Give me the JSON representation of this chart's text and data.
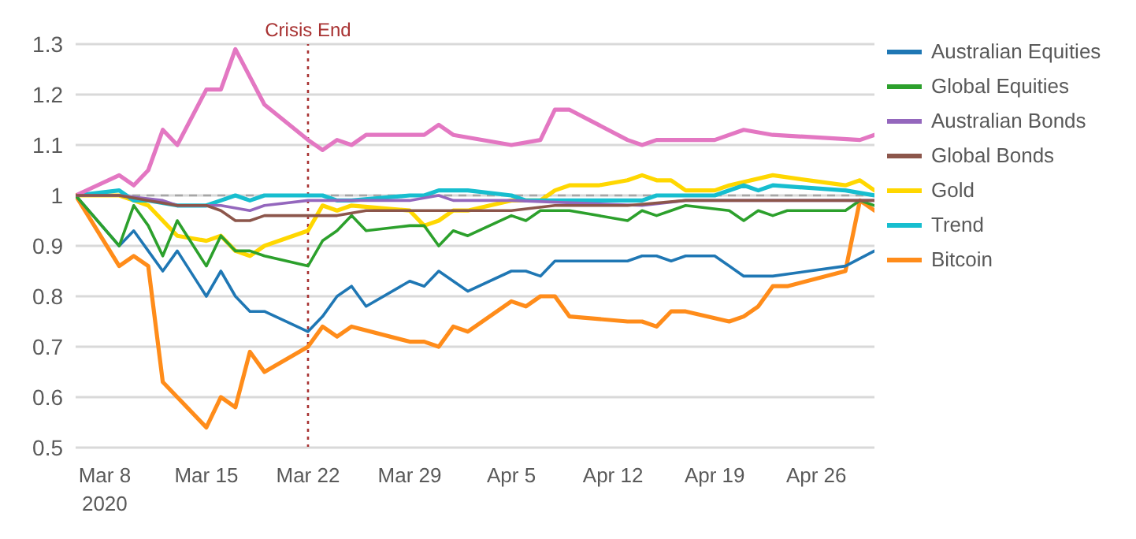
{
  "chart_data": {
    "type": "line",
    "xlim": [
      "2020-03-06",
      "2020-04-30"
    ],
    "xticks": [
      {
        "value": "2020-03-08",
        "label": "Mar 8\n2020"
      },
      {
        "value": "2020-03-15",
        "label": "Mar 15"
      },
      {
        "value": "2020-03-22",
        "label": "Mar 22"
      },
      {
        "value": "2020-03-29",
        "label": "Mar 29"
      },
      {
        "value": "2020-04-05",
        "label": "Apr 5"
      },
      {
        "value": "2020-04-12",
        "label": "Apr 12"
      },
      {
        "value": "2020-04-19",
        "label": "Apr 19"
      },
      {
        "value": "2020-04-26",
        "label": "Apr 26"
      }
    ],
    "ylim": [
      0.5,
      1.3
    ],
    "yticks": [
      0.5,
      0.6,
      0.7,
      0.8,
      0.9,
      1,
      1.1,
      1.2,
      1.3
    ],
    "grid": "y",
    "legend": "right",
    "marker": "none",
    "line_style": "solid",
    "ref_lines": [
      {
        "axis": "x",
        "value": "2020-03-22",
        "label": "Crisis End",
        "color": "#a83232",
        "line_style": "dotted"
      },
      {
        "axis": "y",
        "value": 1,
        "label": null,
        "color": "#a6a6a6",
        "line_style": "dashed"
      }
    ],
    "series": [
      {
        "name": "Australian Equities",
        "color": "#1f77b4",
        "x": [
          "2020-03-06",
          "2020-03-09",
          "2020-03-10",
          "2020-03-11",
          "2020-03-12",
          "2020-03-13",
          "2020-03-15",
          "2020-03-16",
          "2020-03-17",
          "2020-03-18",
          "2020-03-19",
          "2020-03-22",
          "2020-03-23",
          "2020-03-24",
          "2020-03-25",
          "2020-03-26",
          "2020-03-29",
          "2020-03-30",
          "2020-03-31",
          "2020-04-02",
          "2020-04-05",
          "2020-04-06",
          "2020-04-07",
          "2020-04-08",
          "2020-04-11",
          "2020-04-13",
          "2020-04-14",
          "2020-04-15",
          "2020-04-16",
          "2020-04-17",
          "2020-04-19",
          "2020-04-20",
          "2020-04-21",
          "2020-04-23",
          "2020-04-28",
          "2020-04-30"
        ],
        "values": [
          1.0,
          0.9,
          0.93,
          0.89,
          0.85,
          0.89,
          0.8,
          0.85,
          0.8,
          0.77,
          0.77,
          0.73,
          0.76,
          0.8,
          0.82,
          0.78,
          0.83,
          0.82,
          0.85,
          0.81,
          0.85,
          0.85,
          0.84,
          0.87,
          0.87,
          0.87,
          0.88,
          0.88,
          0.87,
          0.88,
          0.88,
          0.86,
          0.84,
          0.84,
          0.86,
          0.89
        ]
      },
      {
        "name": "Global Equities",
        "color": "#2ca02c",
        "x": [
          "2020-03-06",
          "2020-03-09",
          "2020-03-10",
          "2020-03-11",
          "2020-03-12",
          "2020-03-13",
          "2020-03-15",
          "2020-03-16",
          "2020-03-17",
          "2020-03-18",
          "2020-03-19",
          "2020-03-22",
          "2020-03-23",
          "2020-03-24",
          "2020-03-25",
          "2020-03-26",
          "2020-03-29",
          "2020-03-30",
          "2020-03-31",
          "2020-04-01",
          "2020-04-02",
          "2020-04-05",
          "2020-04-06",
          "2020-04-07",
          "2020-04-09",
          "2020-04-11",
          "2020-04-13",
          "2020-04-14",
          "2020-04-15",
          "2020-04-16",
          "2020-04-17",
          "2020-04-20",
          "2020-04-21",
          "2020-04-22",
          "2020-04-23",
          "2020-04-24",
          "2020-04-28",
          "2020-04-29",
          "2020-04-30"
        ],
        "values": [
          1.0,
          0.9,
          0.98,
          0.94,
          0.88,
          0.95,
          0.86,
          0.92,
          0.89,
          0.89,
          0.88,
          0.86,
          0.91,
          0.93,
          0.96,
          0.93,
          0.94,
          0.94,
          0.9,
          0.93,
          0.92,
          0.96,
          0.95,
          0.97,
          0.97,
          0.96,
          0.95,
          0.97,
          0.96,
          0.97,
          0.98,
          0.97,
          0.95,
          0.97,
          0.96,
          0.97,
          0.97,
          0.99,
          0.98
        ]
      },
      {
        "name": "Australian Bonds",
        "color": "#9467bd",
        "x": [
          "2020-03-06",
          "2020-03-09",
          "2020-03-12",
          "2020-03-13",
          "2020-03-15",
          "2020-03-16",
          "2020-03-18",
          "2020-03-19",
          "2020-03-22",
          "2020-03-23",
          "2020-03-29",
          "2020-03-31",
          "2020-04-01",
          "2020-04-05",
          "2020-04-14",
          "2020-04-17",
          "2020-04-23",
          "2020-04-30"
        ],
        "values": [
          1.0,
          1.0,
          0.99,
          0.98,
          0.98,
          0.98,
          0.97,
          0.98,
          0.99,
          0.99,
          0.99,
          1.0,
          0.99,
          0.99,
          0.98,
          0.99,
          0.99,
          0.99
        ]
      },
      {
        "name": "Global Bonds",
        "color": "#8c564b",
        "x": [
          "2020-03-06",
          "2020-03-09",
          "2020-03-11",
          "2020-03-13",
          "2020-03-15",
          "2020-03-16",
          "2020-03-17",
          "2020-03-18",
          "2020-03-19",
          "2020-03-22",
          "2020-03-23",
          "2020-03-24",
          "2020-03-26",
          "2020-03-29",
          "2020-04-05",
          "2020-04-08",
          "2020-04-13",
          "2020-04-17",
          "2020-04-23",
          "2020-04-30"
        ],
        "values": [
          1.0,
          1.0,
          0.99,
          0.98,
          0.98,
          0.97,
          0.95,
          0.95,
          0.96,
          0.96,
          0.96,
          0.96,
          0.97,
          0.97,
          0.97,
          0.98,
          0.98,
          0.99,
          0.99,
          0.99
        ]
      },
      {
        "name": "Gold",
        "color": "#ffd700",
        "x": [
          "2020-03-06",
          "2020-03-09",
          "2020-03-10",
          "2020-03-11",
          "2020-03-13",
          "2020-03-15",
          "2020-03-16",
          "2020-03-17",
          "2020-03-18",
          "2020-03-19",
          "2020-03-22",
          "2020-03-23",
          "2020-03-24",
          "2020-03-25",
          "2020-03-29",
          "2020-03-30",
          "2020-03-31",
          "2020-04-01",
          "2020-04-02",
          "2020-04-05",
          "2020-04-06",
          "2020-04-07",
          "2020-04-08",
          "2020-04-09",
          "2020-04-11",
          "2020-04-13",
          "2020-04-14",
          "2020-04-15",
          "2020-04-16",
          "2020-04-17",
          "2020-04-19",
          "2020-04-20",
          "2020-04-23",
          "2020-04-28",
          "2020-04-29",
          "2020-04-30"
        ],
        "values": [
          1.0,
          1.0,
          0.99,
          0.98,
          0.92,
          0.91,
          0.92,
          0.89,
          0.88,
          0.9,
          0.93,
          0.98,
          0.97,
          0.98,
          0.97,
          0.94,
          0.95,
          0.97,
          0.97,
          0.99,
          0.99,
          0.99,
          1.01,
          1.02,
          1.02,
          1.03,
          1.04,
          1.03,
          1.03,
          1.01,
          1.01,
          1.02,
          1.04,
          1.02,
          1.03,
          1.01
        ]
      },
      {
        "name": "Trend",
        "color": "#17becf",
        "x": [
          "2020-03-06",
          "2020-03-09",
          "2020-03-10",
          "2020-03-11",
          "2020-03-13",
          "2020-03-15",
          "2020-03-16",
          "2020-03-17",
          "2020-03-18",
          "2020-03-19",
          "2020-03-22",
          "2020-03-23",
          "2020-03-24",
          "2020-03-25",
          "2020-03-29",
          "2020-03-30",
          "2020-03-31",
          "2020-04-02",
          "2020-04-05",
          "2020-04-06",
          "2020-04-11",
          "2020-04-13",
          "2020-04-14",
          "2020-04-15",
          "2020-04-16",
          "2020-04-17",
          "2020-04-19",
          "2020-04-21",
          "2020-04-22",
          "2020-04-23",
          "2020-04-28",
          "2020-04-30"
        ],
        "values": [
          1.0,
          1.01,
          0.99,
          0.99,
          0.98,
          0.98,
          0.99,
          1.0,
          0.99,
          1.0,
          1.0,
          1.0,
          0.99,
          0.99,
          1.0,
          1.0,
          1.01,
          1.01,
          1.0,
          0.99,
          0.99,
          0.99,
          0.99,
          1.0,
          1.0,
          1.0,
          1.0,
          1.02,
          1.01,
          1.02,
          1.01,
          1.0
        ]
      },
      {
        "color": "#e377c2",
        "x": [
          "2020-03-06",
          "2020-03-09",
          "2020-03-10",
          "2020-03-11",
          "2020-03-12",
          "2020-03-13",
          "2020-03-15",
          "2020-03-16",
          "2020-03-17",
          "2020-03-19",
          "2020-03-22",
          "2020-03-23",
          "2020-03-24",
          "2020-03-25",
          "2020-03-26",
          "2020-03-29",
          "2020-03-30",
          "2020-03-31",
          "2020-04-01",
          "2020-04-05",
          "2020-04-07",
          "2020-04-08",
          "2020-04-09",
          "2020-04-11",
          "2020-04-13",
          "2020-04-14",
          "2020-04-15",
          "2020-04-17",
          "2020-04-19",
          "2020-04-21",
          "2020-04-23",
          "2020-04-29",
          "2020-04-30"
        ],
        "values": [
          1.0,
          1.04,
          1.02,
          1.05,
          1.13,
          1.1,
          1.21,
          1.21,
          1.29,
          1.18,
          1.11,
          1.09,
          1.11,
          1.1,
          1.12,
          1.12,
          1.12,
          1.14,
          1.12,
          1.1,
          1.11,
          1.17,
          1.17,
          1.14,
          1.11,
          1.1,
          1.11,
          1.11,
          1.11,
          1.13,
          1.12,
          1.11,
          1.12
        ]
      },
      {
        "name": "Bitcoin",
        "color": "#ff8c1a",
        "x": [
          "2020-03-06",
          "2020-03-09",
          "2020-03-10",
          "2020-03-11",
          "2020-03-12",
          "2020-03-13",
          "2020-03-15",
          "2020-03-16",
          "2020-03-17",
          "2020-03-18",
          "2020-03-19",
          "2020-03-22",
          "2020-03-23",
          "2020-03-24",
          "2020-03-25",
          "2020-03-29",
          "2020-03-30",
          "2020-03-31",
          "2020-04-01",
          "2020-04-02",
          "2020-04-05",
          "2020-04-06",
          "2020-04-07",
          "2020-04-08",
          "2020-04-09",
          "2020-04-13",
          "2020-04-14",
          "2020-04-15",
          "2020-04-16",
          "2020-04-17",
          "2020-04-20",
          "2020-04-21",
          "2020-04-22",
          "2020-04-23",
          "2020-04-24",
          "2020-04-28",
          "2020-04-29",
          "2020-04-30"
        ],
        "values": [
          1.0,
          0.86,
          0.88,
          0.86,
          0.63,
          0.6,
          0.54,
          0.6,
          0.58,
          0.69,
          0.65,
          0.7,
          0.74,
          0.72,
          0.74,
          0.71,
          0.71,
          0.7,
          0.74,
          0.73,
          0.79,
          0.78,
          0.8,
          0.8,
          0.76,
          0.75,
          0.75,
          0.74,
          0.77,
          0.77,
          0.75,
          0.76,
          0.78,
          0.82,
          0.82,
          0.85,
          0.99,
          0.97
        ]
      }
    ]
  }
}
